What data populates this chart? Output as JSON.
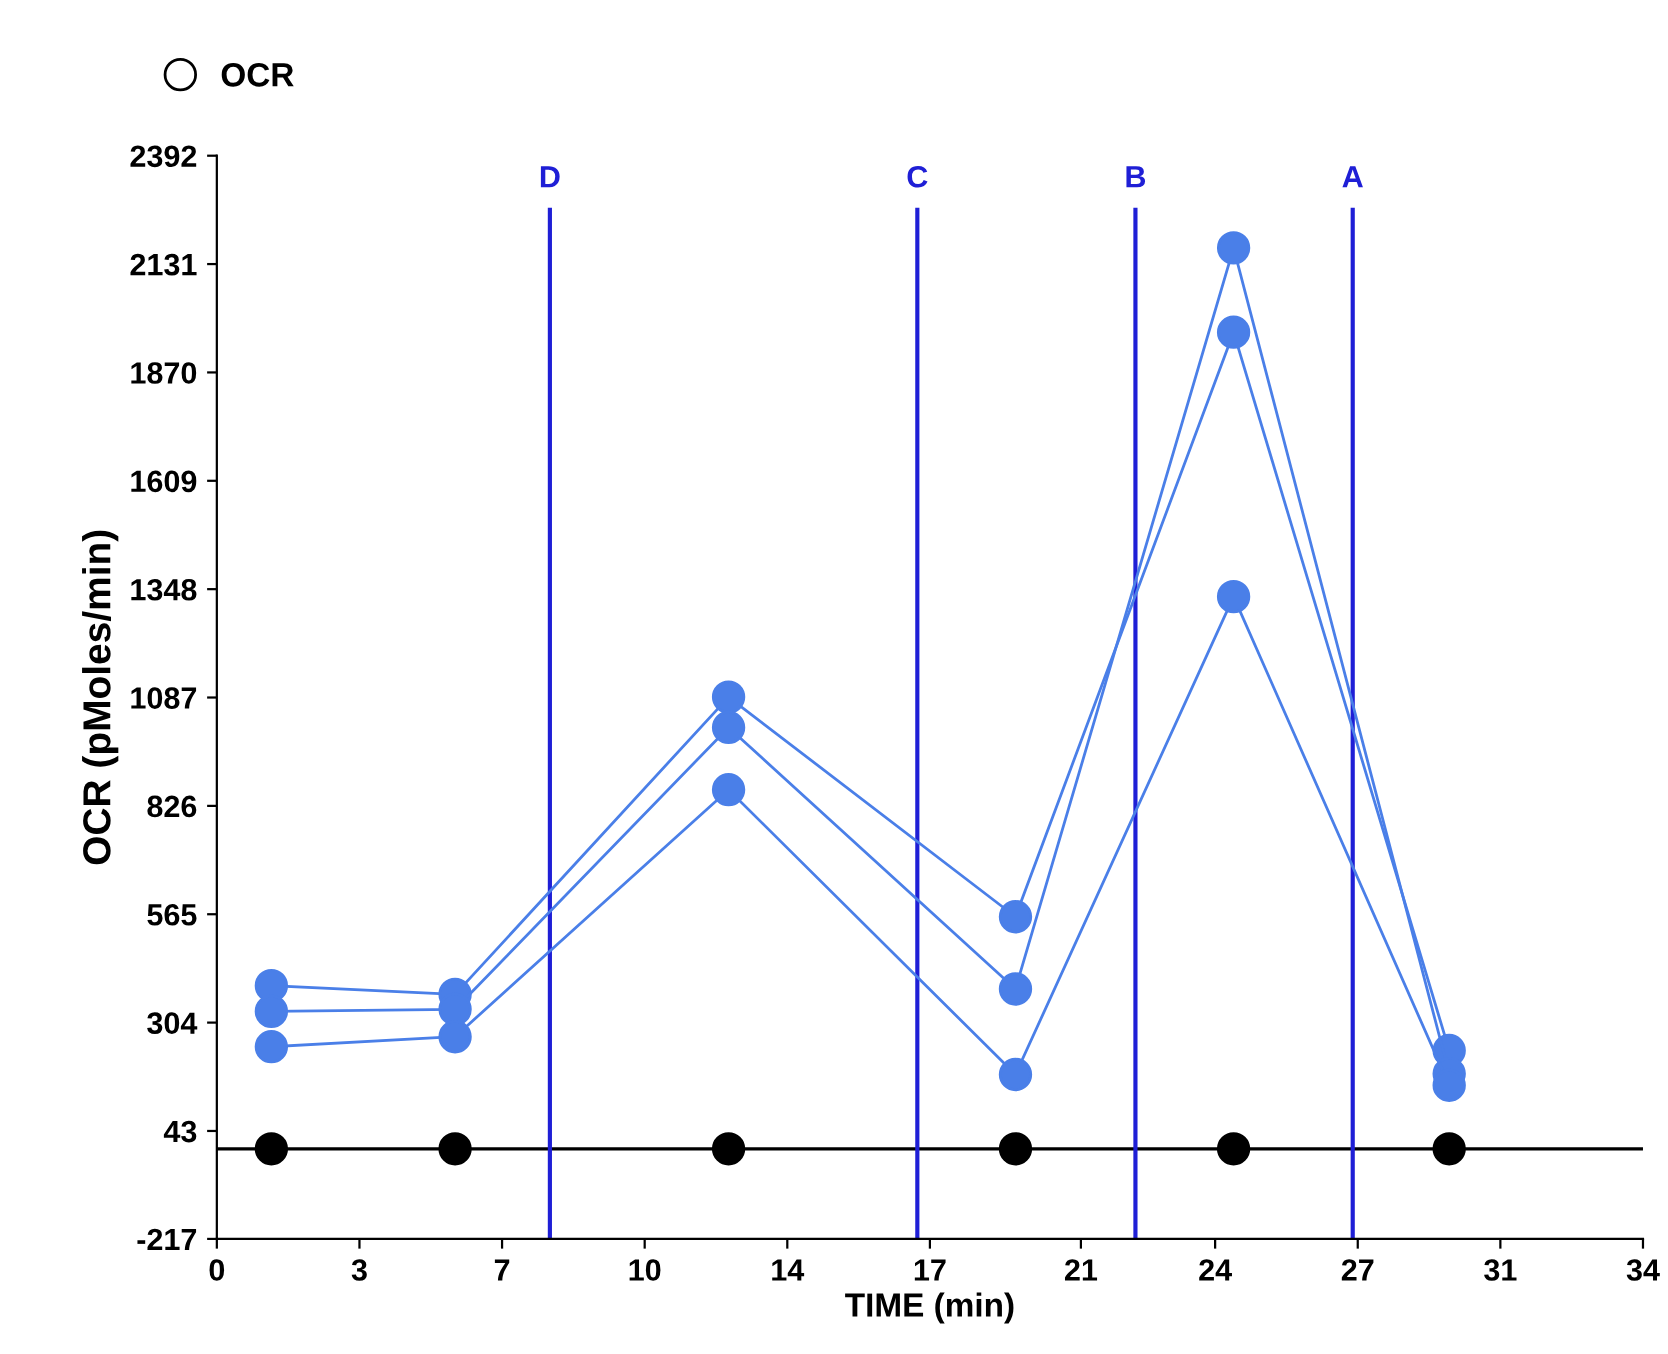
{
  "chart_data": {
    "type": "line",
    "xlabel": "TIME (min)",
    "ylabel": "OCR (pMoles/min)",
    "legend_title": "OCR",
    "legend": "top left",
    "marker": "circle",
    "line_style": "solid",
    "grid": false,
    "xlim": [
      0,
      34
    ],
    "ylim": [
      -217,
      2392
    ],
    "xticks": [
      0,
      {
        "value": 3.4,
        "label": "3"
      },
      {
        "value": 6.8,
        "label": "7"
      },
      {
        "value": 10.2,
        "label": "10"
      },
      {
        "value": 13.6,
        "label": "14"
      },
      17,
      {
        "value": 20.6,
        "label": "21"
      },
      {
        "value": 23.8,
        "label": "24"
      },
      {
        "value": 27.2,
        "label": "27"
      },
      {
        "value": 30.6,
        "label": "31"
      },
      34
    ],
    "yticks": [
      -217,
      43,
      304,
      565,
      826,
      1087,
      1348,
      1609,
      1870,
      2131,
      2392
    ],
    "series": [
      {
        "color": "#4a7fe8",
        "x": [
          1.3,
          5.68,
          12.2,
          19.04,
          24.24,
          29.38
        ],
        "values": [
          393,
          372,
          1088,
          559,
          1967,
          237
        ]
      },
      {
        "color": "#4a7fe8",
        "x": [
          1.3,
          5.68,
          12.2,
          19.04,
          24.24,
          29.38
        ],
        "values": [
          331,
          336,
          1015,
          385,
          2170,
          181
        ]
      },
      {
        "color": "#4a7fe8",
        "x": [
          1.3,
          5.68,
          12.2,
          19.04,
          24.24,
          29.38
        ],
        "values": [
          246,
          270,
          865,
          179,
          1330,
          153
        ]
      },
      {
        "type": "scatter",
        "color": "#000000",
        "x": [
          1.3,
          5.68,
          12.2,
          19.04,
          24.24,
          29.38
        ],
        "values": [
          0,
          0,
          0,
          0,
          0,
          0
        ]
      }
    ],
    "ref_lines": [
      {
        "axis": "y",
        "value": 0,
        "color": "#000000"
      },
      {
        "axis": "x",
        "value": 7.94,
        "label": "D",
        "color": "#1f1fd6"
      },
      {
        "axis": "x",
        "value": 16.7,
        "label": "C",
        "color": "#1f1fd6"
      },
      {
        "axis": "x",
        "value": 21.9,
        "label": "B",
        "color": "#1f1fd6"
      },
      {
        "axis": "x",
        "value": 27.08,
        "label": "A",
        "color": "#1f1fd6"
      }
    ]
  }
}
